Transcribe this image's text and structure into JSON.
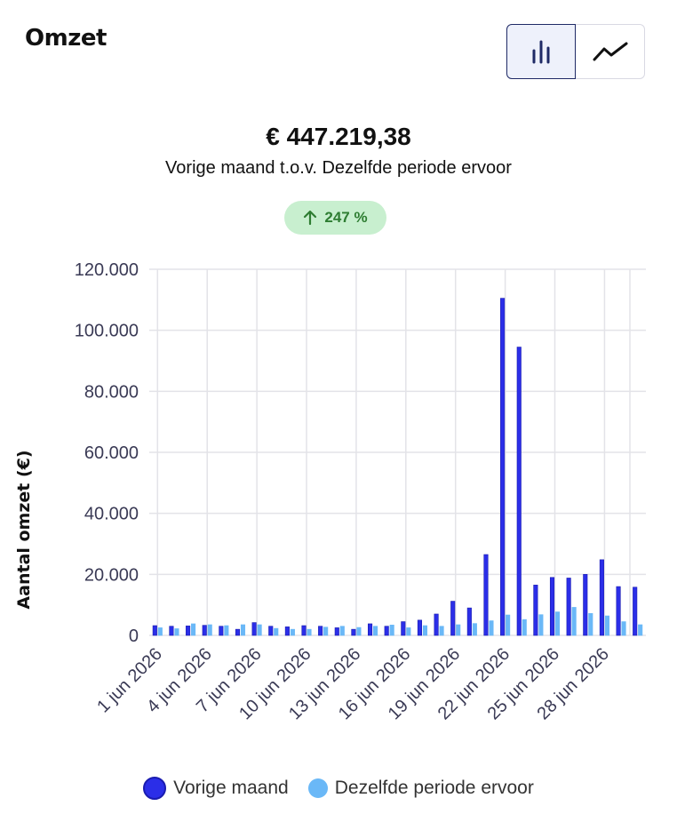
{
  "header": {
    "title": "Omzet"
  },
  "toggle": {
    "bar_icon": "bar-chart-icon",
    "line_icon": "line-chart-icon",
    "active": "bar"
  },
  "summary": {
    "total": "€ 447.219,38",
    "period_current": "Vorige maand",
    "period_separator": "t.o.v.",
    "period_previous": "Dezelfde periode ervoor",
    "change_icon": "arrow-up-icon",
    "change": "247 %"
  },
  "colors": {
    "current": "#2b2ee8",
    "previous": "#6ab8f7",
    "positive_bg": "#c8efcf",
    "positive_text": "#2e7d32"
  },
  "chart_data": {
    "type": "bar",
    "ylabel": "Aantal omzet (€)",
    "ylim": [
      0,
      120000
    ],
    "yticks": [
      0,
      20000,
      40000,
      60000,
      80000,
      100000,
      120000
    ],
    "ytick_labels": [
      "0",
      "20.000",
      "40.000",
      "60.000",
      "80.000",
      "100.000",
      "120.000"
    ],
    "categories": [
      "1 jun 2026",
      "2 jun 2026",
      "3 jun 2026",
      "4 jun 2026",
      "5 jun 2026",
      "6 jun 2026",
      "7 jun 2026",
      "8 jun 2026",
      "9 jun 2026",
      "10 jun 2026",
      "11 jun 2026",
      "12 jun 2026",
      "13 jun 2026",
      "14 jun 2026",
      "15 jun 2026",
      "16 jun 2026",
      "17 jun 2026",
      "18 jun 2026",
      "19 jun 2026",
      "20 jun 2026",
      "21 jun 2026",
      "22 jun 2026",
      "23 jun 2026",
      "24 jun 2026",
      "25 jun 2026",
      "26 jun 2026",
      "27 jun 2026",
      "28 jun 2026",
      "29 jun 2026",
      "30 jun 2026"
    ],
    "xtick_labels": [
      "1 jun 2026",
      "4 jun 2026",
      "7 jun 2026",
      "10 jun 2026",
      "13 jun 2026",
      "16 jun 2026",
      "19 jun 2026",
      "22 jun 2026",
      "25 jun 2026",
      "28 jun 2026"
    ],
    "series": [
      {
        "name": "Vorige maand",
        "values": [
          3200,
          3000,
          3100,
          3300,
          3000,
          2000,
          4200,
          3000,
          2800,
          3200,
          3000,
          2500,
          2000,
          3800,
          3000,
          4500,
          5000,
          7000,
          11200,
          9000,
          26500,
          110500,
          94500,
          16500,
          19000,
          18800,
          20000,
          24800,
          16000,
          15800
        ]
      },
      {
        "name": "Dezelfde periode ervoor",
        "values": [
          2500,
          2200,
          3800,
          3500,
          3200,
          3500,
          3500,
          2300,
          2000,
          2000,
          2700,
          3000,
          2600,
          3000,
          3400,
          2500,
          3200,
          3000,
          3500,
          3900,
          4800,
          6700,
          5200,
          6800,
          7700,
          9200,
          7200,
          6400,
          4500,
          3500
        ]
      }
    ],
    "grid": true,
    "legend_position": "bottom"
  }
}
